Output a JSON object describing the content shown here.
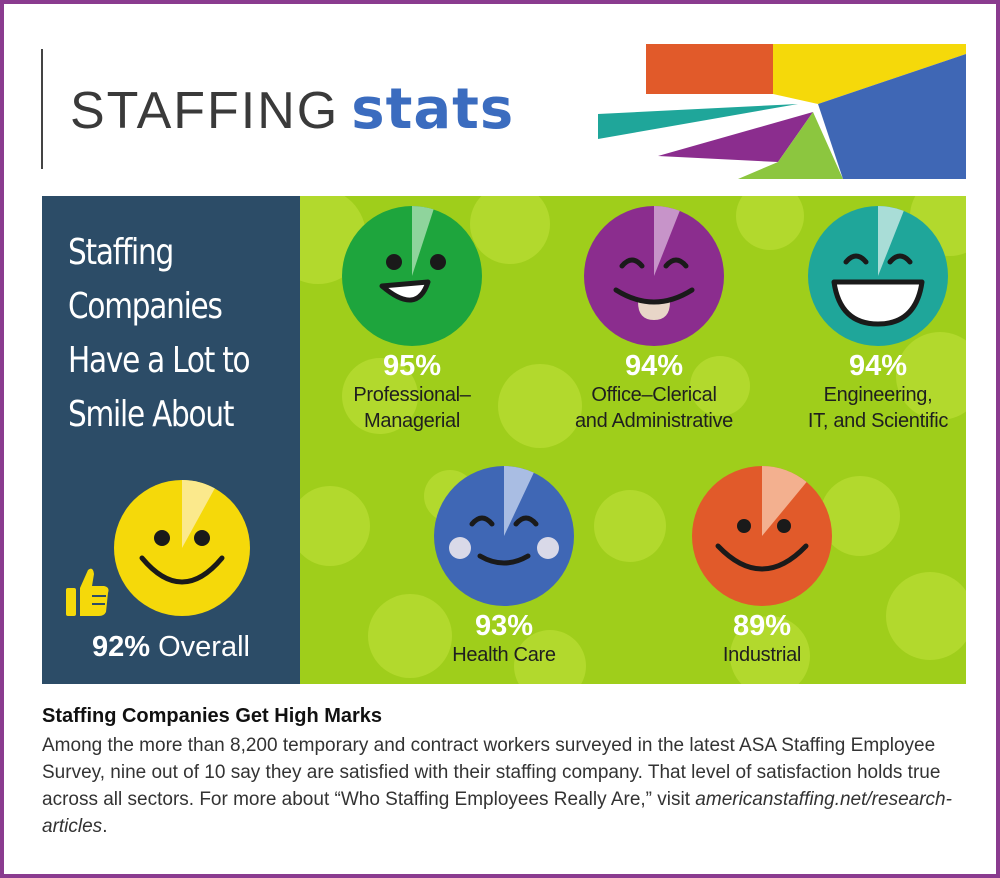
{
  "header": {
    "title_light": "STAFFING",
    "title_bold": "stats"
  },
  "panel": {
    "headline_lines": [
      "Staffing",
      "Companies",
      "Have a Lot to",
      "Smile About"
    ],
    "overall_value": "92%",
    "overall_label": "Overall"
  },
  "sectors": [
    {
      "pct_text": "95%",
      "label_lines": [
        "Professional–",
        "Managerial"
      ],
      "face_color": "#1ea53d",
      "face": "open-smile",
      "wedge_color": "#8fd49c"
    },
    {
      "pct_text": "94%",
      "label_lines": [
        "Office–Clerical",
        "and Administrative"
      ],
      "face_color": "#8b2d8e",
      "face": "tongue",
      "wedge_color": "#c794c9"
    },
    {
      "pct_text": "94%",
      "label_lines": [
        "Engineering,",
        "IT, and Scientific"
      ],
      "face_color": "#1fa69a",
      "face": "big-grin",
      "wedge_color": "#a9ddd7"
    },
    {
      "pct_text": "93%",
      "label_lines": [
        "Health Care"
      ],
      "face_color": "#3f67b5",
      "face": "blush",
      "wedge_color": "#a9bde3"
    },
    {
      "pct_text": "89%",
      "label_lines": [
        "Industrial"
      ],
      "face_color": "#e15a2a",
      "face": "smile",
      "wedge_color": "#f3b08f"
    }
  ],
  "chart_data": {
    "type": "pie",
    "title": "Staffing Companies Have a Lot to Smile About",
    "overall": {
      "label": "Overall",
      "value": 92
    },
    "categories": [
      "Professional–Managerial",
      "Office–Clerical and Administrative",
      "Engineering, IT, and Scientific",
      "Health Care",
      "Industrial"
    ],
    "values": [
      95,
      94,
      94,
      93,
      89
    ],
    "unit": "%"
  },
  "caption": {
    "title": "Staffing Companies Get High Marks",
    "body": "Among the more than 8,200 temporary and contract workers surveyed in the latest ASA Staffing Employee Survey, nine out of 10 say they are satisfied with their staffing company. That level of satisfaction holds true across all sectors. For more about “Who Staffing Employees Really Are,” visit ",
    "link": "americanstaffing.net/research-articles",
    "end": "."
  },
  "colors": {
    "frame": "#8a3b8f",
    "panel": "#2c4c67",
    "green_background": "#9fce1b",
    "accent_blue": "#3b6cbf",
    "overall_face": "#f5d90a"
  },
  "icons": [
    "thumbs-up-icon",
    "smiley-face-icon"
  ]
}
